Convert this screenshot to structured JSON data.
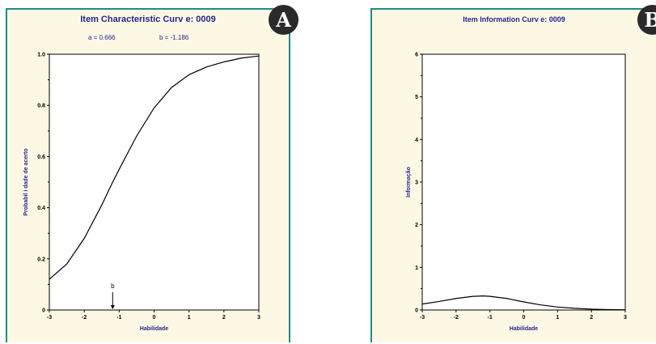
{
  "colors": {
    "panel_bg": "#fdf8e4",
    "border": "#1f8a88",
    "title": "#24248f",
    "badge_bg": "#2a2a2a"
  },
  "panel_a": {
    "badge": "A",
    "params": {
      "a": "a = 0.666",
      "b": "b = -1.186"
    }
  },
  "panel_b": {
    "badge": "B"
  },
  "chart_data": [
    {
      "type": "line",
      "title": "Item Characteristic Curv e: 0009",
      "xlabel": "Habilidade",
      "ylabel": "Probabil i dade de acerto",
      "xlim": [
        -3,
        3
      ],
      "ylim": [
        0,
        1
      ],
      "x_ticks": [
        "-3",
        "-2",
        "-1",
        "0",
        "1",
        "2",
        "3"
      ],
      "y_ticks": [
        "0",
        "0.2",
        "0.4",
        "0.6",
        "0.8",
        "1.0"
      ],
      "series": [
        {
          "x": [
            -3,
            -2.5,
            -2,
            -1.5,
            -1.186,
            -1,
            -0.5,
            0,
            0.5,
            1,
            1.5,
            2,
            2.5,
            3
          ],
          "y": [
            0.12,
            0.18,
            0.28,
            0.41,
            0.5,
            0.55,
            0.68,
            0.79,
            0.87,
            0.92,
            0.95,
            0.97,
            0.985,
            0.993
          ]
        }
      ],
      "annotations": [
        {
          "label": "b",
          "x": -1.186
        }
      ],
      "grid": false
    },
    {
      "type": "line",
      "title": "Item Information Curv e: 0009",
      "xlabel": "Habilidade",
      "ylabel": "Informação",
      "xlim": [
        -3,
        3
      ],
      "ylim": [
        0,
        6
      ],
      "x_ticks": [
        "-3",
        "-2",
        "-1",
        "0",
        "1",
        "2",
        "3"
      ],
      "y_ticks": [
        "0",
        "1",
        "2",
        "3",
        "4",
        "5",
        "6"
      ],
      "series": [
        {
          "x": [
            -3,
            -2.5,
            -2,
            -1.5,
            -1.186,
            -1,
            -0.5,
            0,
            0.5,
            1,
            1.5,
            2,
            2.5,
            3
          ],
          "y": [
            0.14,
            0.2,
            0.27,
            0.32,
            0.33,
            0.32,
            0.27,
            0.19,
            0.12,
            0.07,
            0.04,
            0.02,
            0.01,
            0.005
          ]
        }
      ],
      "grid": false
    }
  ]
}
